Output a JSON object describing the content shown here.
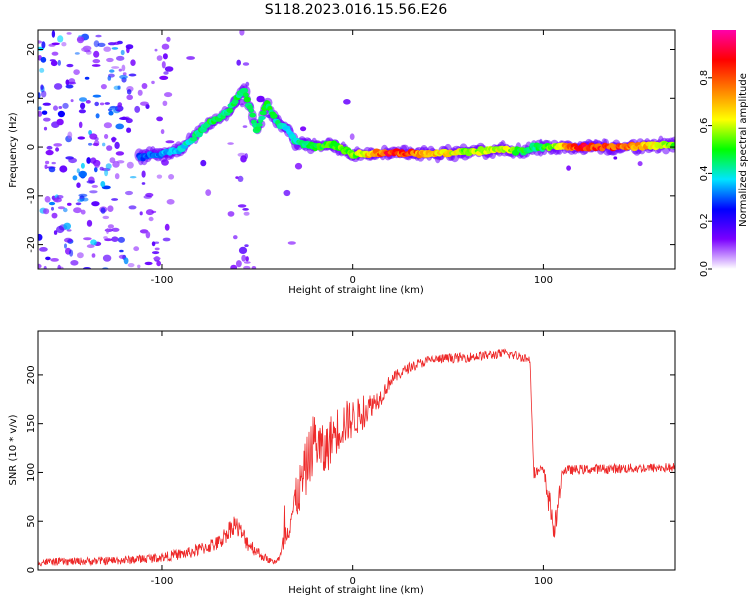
{
  "title": "S118.2023.016.15.56.E26",
  "chart_data": [
    {
      "type": "heatmap",
      "xlabel": "Height of straight line (km)",
      "ylabel": "Frequency (Hz)",
      "xlim": [
        -165,
        169
      ],
      "ylim": [
        -25,
        24
      ],
      "xticks": [
        -100,
        0,
        100
      ],
      "yticks": [
        -20,
        -10,
        0,
        10,
        20
      ],
      "grid": false,
      "colorbar": {
        "label": "Normalized spectral amplitude",
        "range": [
          0,
          1
        ],
        "ticks": [
          0.0,
          0.2,
          0.4,
          0.6,
          0.8
        ],
        "colors": [
          "#ffffff",
          "#7a00ff",
          "#0000ff",
          "#00e5ff",
          "#00ff00",
          "#ffff00",
          "#ff8000",
          "#ff0000",
          "#ff00aa"
        ]
      },
      "ridge": {
        "x": [
          -110,
          -90,
          -75,
          -66,
          -57,
          -50,
          -45,
          -40,
          -35,
          -30,
          -20,
          -10,
          0,
          20,
          40,
          60,
          80,
          90,
          95,
          100,
          120,
          140,
          169
        ],
        "y": [
          -2,
          -0.5,
          5,
          7,
          12,
          3,
          9,
          5,
          4,
          1,
          0,
          0.5,
          -1.5,
          -1,
          -1.5,
          -1,
          -0.5,
          -1,
          0,
          0,
          0,
          0,
          0.5
        ],
        "amplitude": [
          0.3,
          0.4,
          0.5,
          0.45,
          0.5,
          0.45,
          0.5,
          0.45,
          0.4,
          0.45,
          0.5,
          0.55,
          0.55,
          0.9,
          0.75,
          0.6,
          0.65,
          0.5,
          0.45,
          0.5,
          0.9,
          0.85,
          0.55
        ]
      }
    },
    {
      "type": "line",
      "xlabel": "Height of straight line (km)",
      "ylabel": "SNR (10 * v/v)",
      "xlim": [
        -165,
        169
      ],
      "ylim": [
        0,
        245
      ],
      "xticks": [
        -100,
        0,
        100
      ],
      "yticks": [
        0,
        50,
        100,
        150,
        200
      ],
      "grid": false,
      "series": [
        {
          "color": "#ee2a2a",
          "x": [
            -165,
            -140,
            -120,
            -100,
            -85,
            -70,
            -62,
            -55,
            -48,
            -42,
            -38,
            -35,
            -30,
            -25,
            -20,
            -15,
            -10,
            -5,
            0,
            5,
            10,
            15,
            20,
            30,
            40,
            50,
            60,
            70,
            80,
            90,
            93,
            95,
            100,
            103,
            106,
            110,
            120,
            140,
            169
          ],
          "y": [
            8,
            9,
            10,
            13,
            18,
            28,
            48,
            28,
            15,
            8,
            12,
            38,
            70,
            100,
            135,
            118,
            140,
            150,
            155,
            160,
            170,
            178,
            195,
            208,
            215,
            217,
            218,
            220,
            222,
            218,
            215,
            100,
            102,
            70,
            40,
            102,
            103,
            104,
            105
          ],
          "spread": [
            8,
            8,
            9,
            10,
            12,
            16,
            22,
            18,
            10,
            6,
            10,
            30,
            45,
            60,
            60,
            55,
            50,
            48,
            40,
            35,
            25,
            18,
            14,
            10,
            10,
            10,
            10,
            10,
            10,
            10,
            10,
            12,
            12,
            30,
            30,
            10,
            10,
            10,
            10
          ]
        }
      ]
    }
  ]
}
